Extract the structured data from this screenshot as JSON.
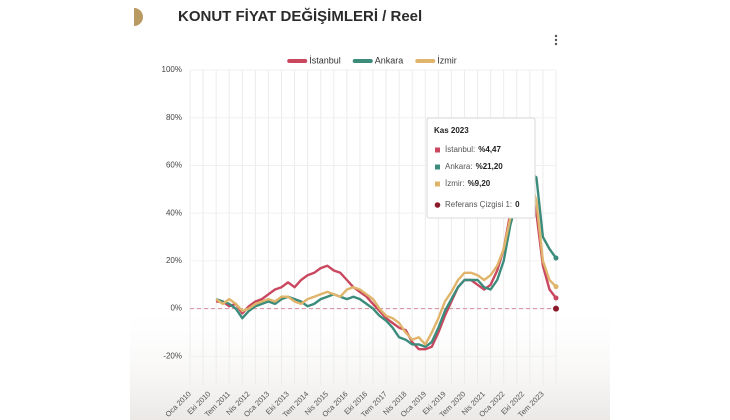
{
  "chart_data": {
    "type": "line",
    "title": "KONUT FİYAT DEĞİŞİMLERİ / Reel",
    "categories": [
      "Oca 2010",
      null,
      null,
      "Eki 2010",
      null,
      null,
      "Tem 2011",
      null,
      null,
      "Nis 2012",
      null,
      null,
      "Oca 2013",
      null,
      null,
      "Eki 2013",
      null,
      null,
      "Tem 2014",
      null,
      null,
      "Nis 2015",
      null,
      null,
      "Oca 2016",
      null,
      null,
      "Eki 2016",
      null,
      null,
      "Tem 2017",
      null,
      null,
      "Nis 2018",
      null,
      null,
      "Oca 2019",
      null,
      null,
      "Eki 2019",
      null,
      null,
      "Tem 2020",
      null,
      null,
      "Nis 2021",
      null,
      null,
      "Oca 2022",
      null,
      null,
      "Eki 2022",
      null,
      null,
      "Tem 2023",
      null,
      null
    ],
    "series": [
      {
        "name": "İstanbul",
        "color": "#c9475f",
        "values": [
          null,
          null,
          null,
          null,
          3,
          3,
          1,
          2,
          -2,
          1,
          3,
          4,
          6,
          8,
          9,
          11,
          9,
          12,
          14,
          15,
          17,
          18,
          16,
          15,
          12,
          9,
          7,
          5,
          2,
          -1,
          -4,
          -6,
          -8,
          -9,
          -14,
          -17,
          -17,
          -16,
          -10,
          -3,
          3,
          9,
          12,
          12,
          10,
          8,
          10,
          16,
          25,
          40,
          50,
          54,
          52,
          40,
          18,
          8,
          4.47
        ]
      },
      {
        "name": "Ankara",
        "color": "#3c8c7c",
        "values": [
          null,
          null,
          null,
          null,
          4,
          3,
          2,
          0,
          -4,
          -1,
          1,
          2,
          3,
          2,
          4,
          5,
          4,
          3,
          1,
          2,
          4,
          5,
          6,
          5,
          4,
          5,
          4,
          2,
          0,
          -3,
          -5,
          -8,
          -12,
          -13,
          -15,
          -15,
          -16,
          -14,
          -8,
          -1,
          4,
          9,
          12,
          12,
          12,
          9,
          8,
          12,
          20,
          35,
          45,
          52,
          57,
          55,
          30,
          25,
          21.2
        ]
      },
      {
        "name": "İzmir",
        "color": "#e0b46a",
        "values": [
          null,
          null,
          null,
          null,
          4,
          2,
          4,
          2,
          -1,
          0,
          2,
          3,
          4,
          3,
          5,
          5,
          3,
          2,
          4,
          5,
          6,
          7,
          6,
          5,
          8,
          9,
          8,
          6,
          4,
          0,
          -3,
          -4,
          -6,
          -10,
          -13,
          -12,
          -15,
          -10,
          -4,
          3,
          7,
          12,
          15,
          15,
          14,
          12,
          14,
          18,
          25,
          38,
          48,
          53,
          55,
          45,
          20,
          12,
          9.2
        ]
      }
    ],
    "reference_line": {
      "name": "Referans Çizgisi 1",
      "value": 0,
      "color": "#8b1a2b"
    },
    "ylim": [
      -32,
      100
    ],
    "yticks": [
      {
        "value": -20,
        "label": "-20%"
      },
      {
        "value": 0,
        "label": "0%"
      },
      {
        "value": 20,
        "label": "20%"
      },
      {
        "value": 40,
        "label": "40%"
      },
      {
        "value": 60,
        "label": "60%"
      },
      {
        "value": 80,
        "label": "80%"
      },
      {
        "value": 100,
        "label": "100%"
      }
    ],
    "grid": true,
    "legend_position": "top",
    "tooltip": {
      "title": "Kas 2023",
      "items": [
        {
          "label": "İstanbul:",
          "value": "%4,47"
        },
        {
          "label": "Ankara:",
          "value": "%21,20"
        },
        {
          "label": "İzmir:",
          "value": "%9,20"
        },
        {
          "label": "Referans Çizgisi 1:",
          "value": "0"
        }
      ]
    }
  }
}
